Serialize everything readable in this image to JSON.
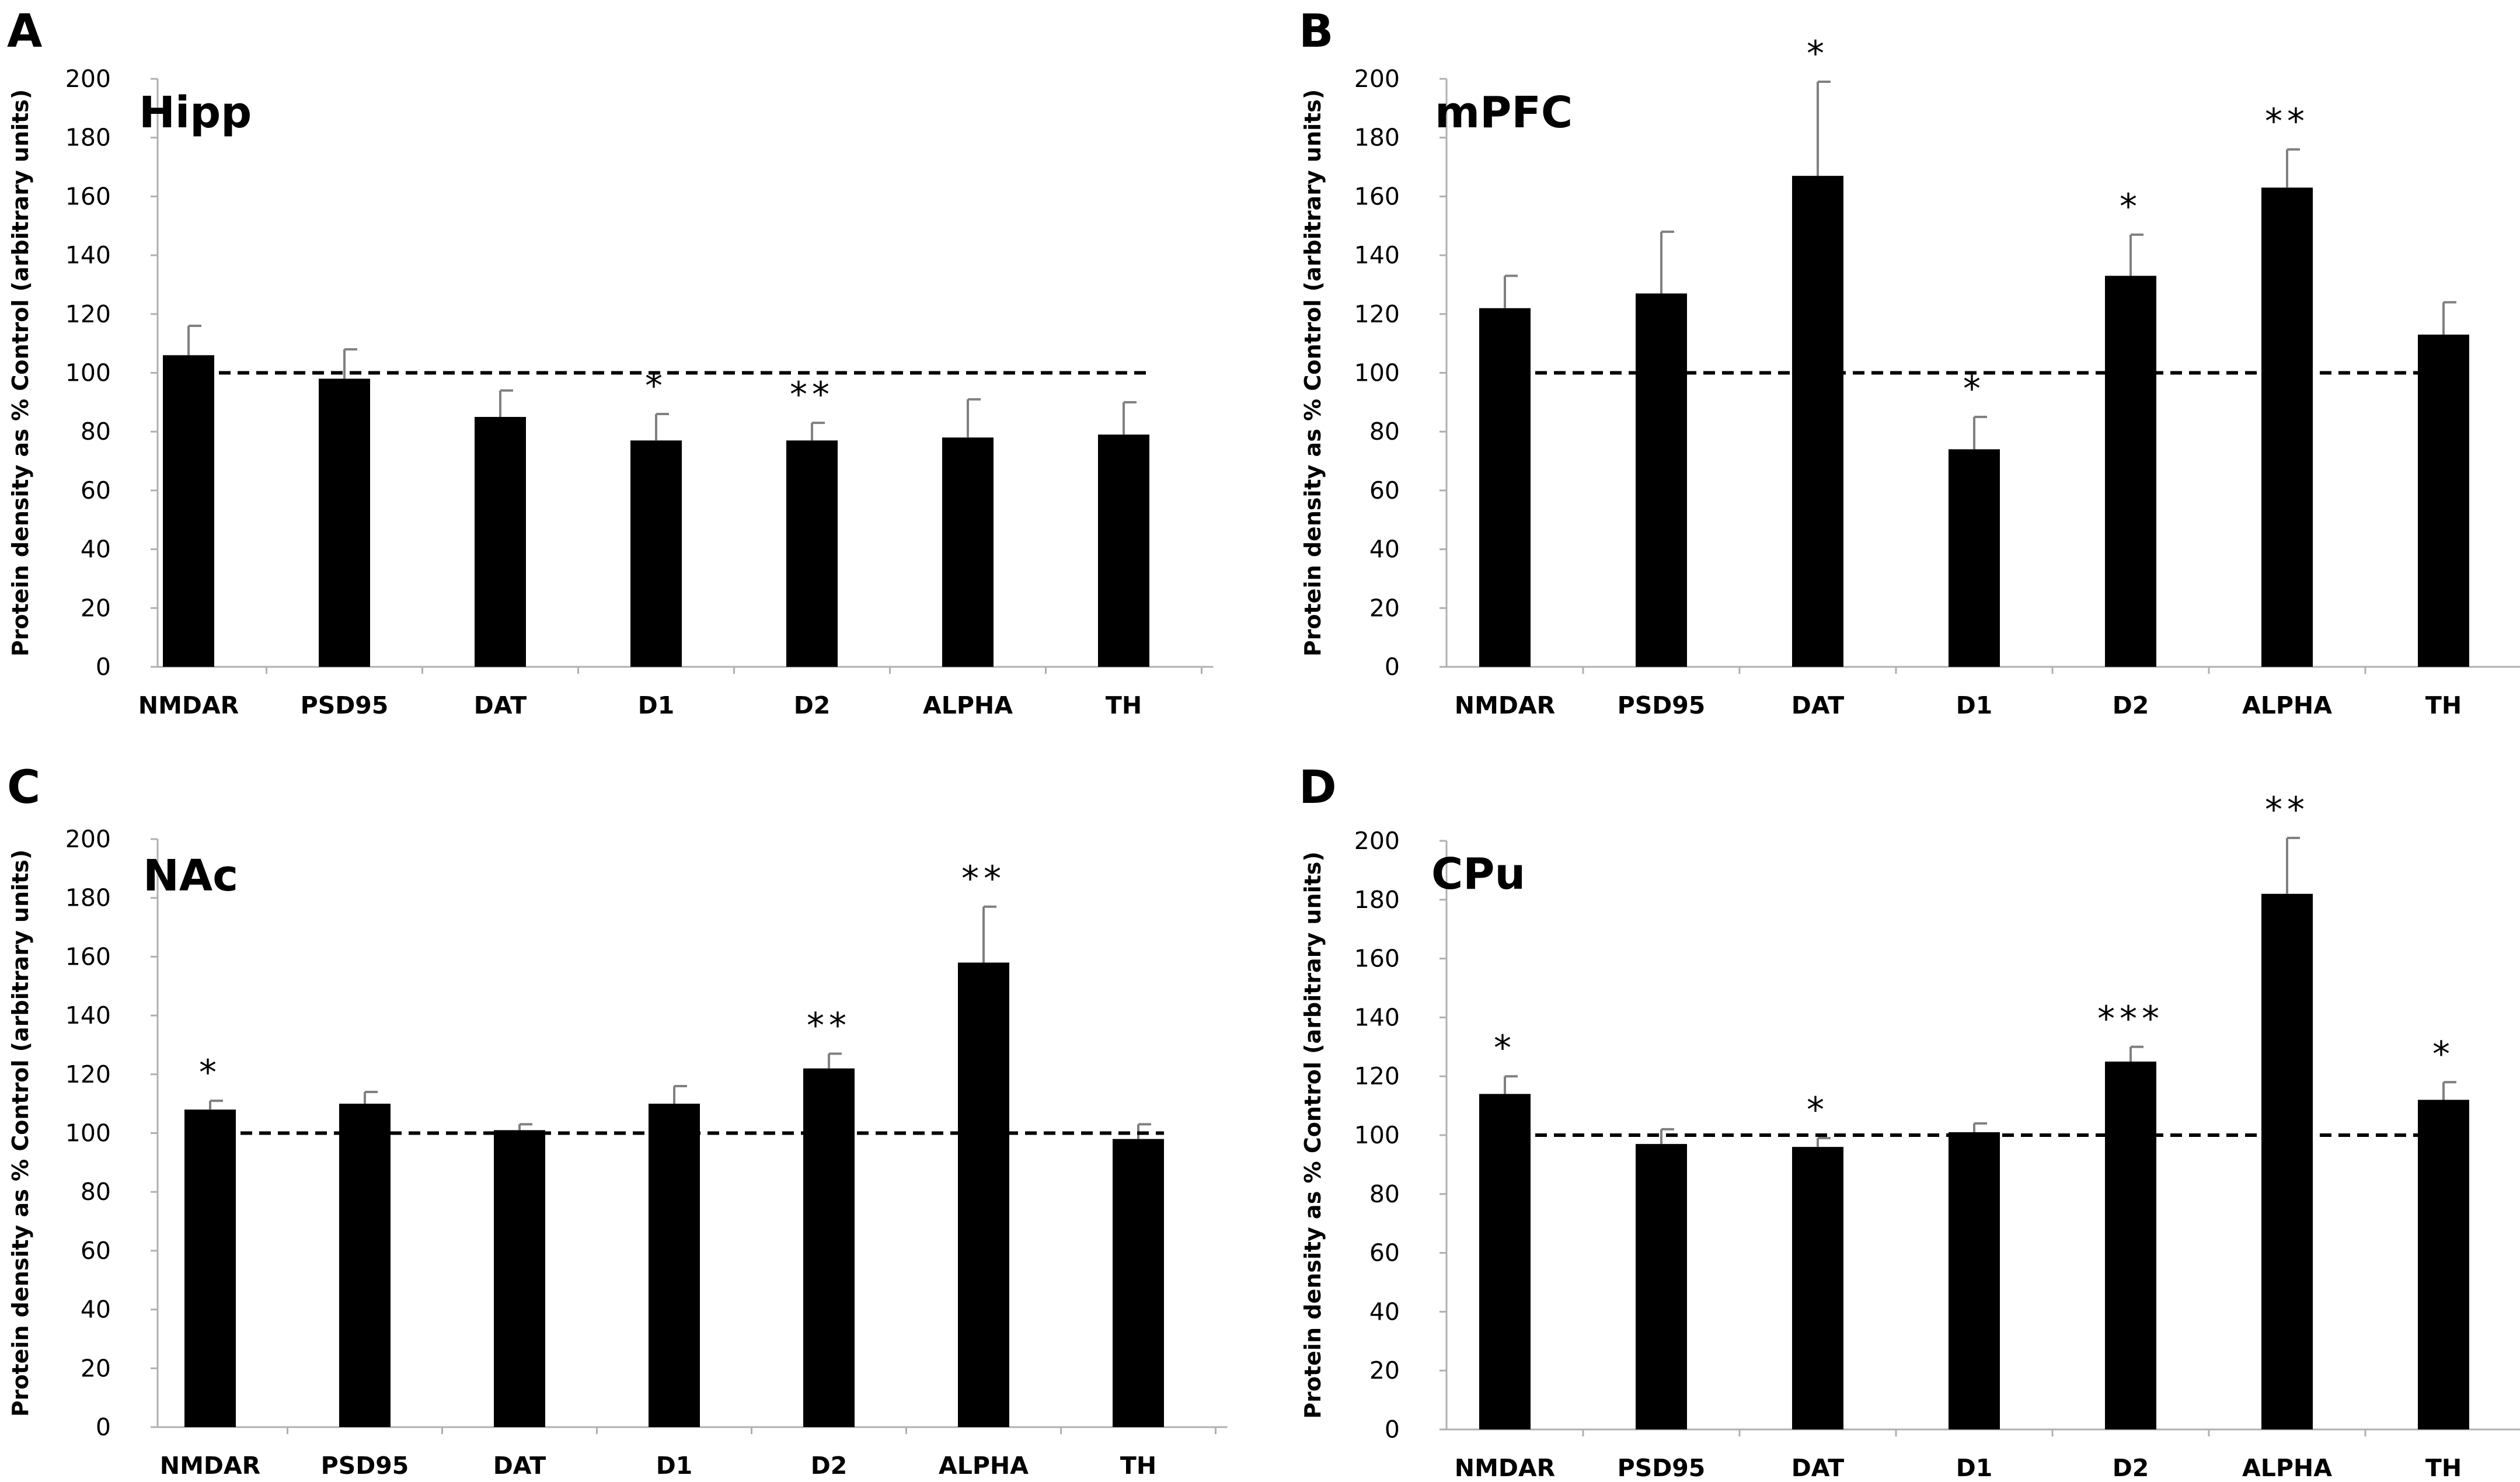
{
  "chart_data": [
    {
      "panel": "A",
      "type": "bar",
      "title": "Hipp",
      "ylabel": "Protein density as % Control (arbitrary units)",
      "xlabel": "",
      "ylim": [
        0,
        200
      ],
      "yticks": [
        0,
        20,
        40,
        60,
        80,
        100,
        120,
        140,
        160,
        180,
        200
      ],
      "reference_line": 100,
      "categories": [
        "NMDAR",
        "PSD95",
        "DAT",
        "D1",
        "D2",
        "ALPHA",
        "TH"
      ],
      "values": [
        106,
        98,
        85,
        77,
        77,
        78,
        79
      ],
      "errors": [
        10,
        10,
        9,
        9,
        6,
        13,
        11
      ],
      "significance": [
        "",
        "",
        "",
        "*",
        "**",
        "",
        ""
      ]
    },
    {
      "panel": "B",
      "type": "bar",
      "title": "mPFC",
      "ylabel": "Protein density as % Control (arbitrary units)",
      "xlabel": "",
      "ylim": [
        0,
        200
      ],
      "yticks": [
        0,
        20,
        40,
        60,
        80,
        100,
        120,
        140,
        160,
        180,
        200
      ],
      "reference_line": 100,
      "categories": [
        "NMDAR",
        "PSD95",
        "DAT",
        "D1",
        "D2",
        "ALPHA",
        "TH"
      ],
      "values": [
        122,
        127,
        167,
        74,
        133,
        163,
        113
      ],
      "errors": [
        11,
        21,
        32,
        11,
        14,
        13,
        11
      ],
      "significance": [
        "",
        "",
        "*",
        "*",
        "*",
        "**",
        ""
      ]
    },
    {
      "panel": "C",
      "type": "bar",
      "title": "NAc",
      "ylabel": "Protein density as % Control (arbitrary units)",
      "xlabel": "",
      "ylim": [
        0,
        200
      ],
      "yticks": [
        0,
        20,
        40,
        60,
        80,
        100,
        120,
        140,
        160,
        180,
        200
      ],
      "reference_line": 100,
      "categories": [
        "NMDAR",
        "PSD95",
        "DAT",
        "D1",
        "D2",
        "ALPHA",
        "TH"
      ],
      "values": [
        108,
        110,
        101,
        110,
        122,
        158,
        98
      ],
      "errors": [
        3,
        4,
        2,
        6,
        5,
        19,
        5
      ],
      "significance": [
        "*",
        "",
        "",
        "",
        "**",
        "**",
        ""
      ]
    },
    {
      "panel": "D",
      "type": "bar",
      "title": "CPu",
      "ylabel": "Protein density as % Control (arbitrary units)",
      "xlabel": "",
      "ylim": [
        0,
        200
      ],
      "yticks": [
        0,
        20,
        40,
        60,
        80,
        100,
        120,
        140,
        160,
        180,
        200
      ],
      "reference_line": 100,
      "categories": [
        "NMDAR",
        "PSD95",
        "DAT",
        "D1",
        "D2",
        "ALPHA",
        "TH"
      ],
      "values": [
        114,
        97,
        96,
        101,
        125,
        182,
        112
      ],
      "errors": [
        6,
        5,
        3,
        3,
        5,
        19,
        6
      ],
      "significance": [
        "*",
        "",
        "*",
        "",
        "***",
        "**",
        "*"
      ]
    }
  ]
}
